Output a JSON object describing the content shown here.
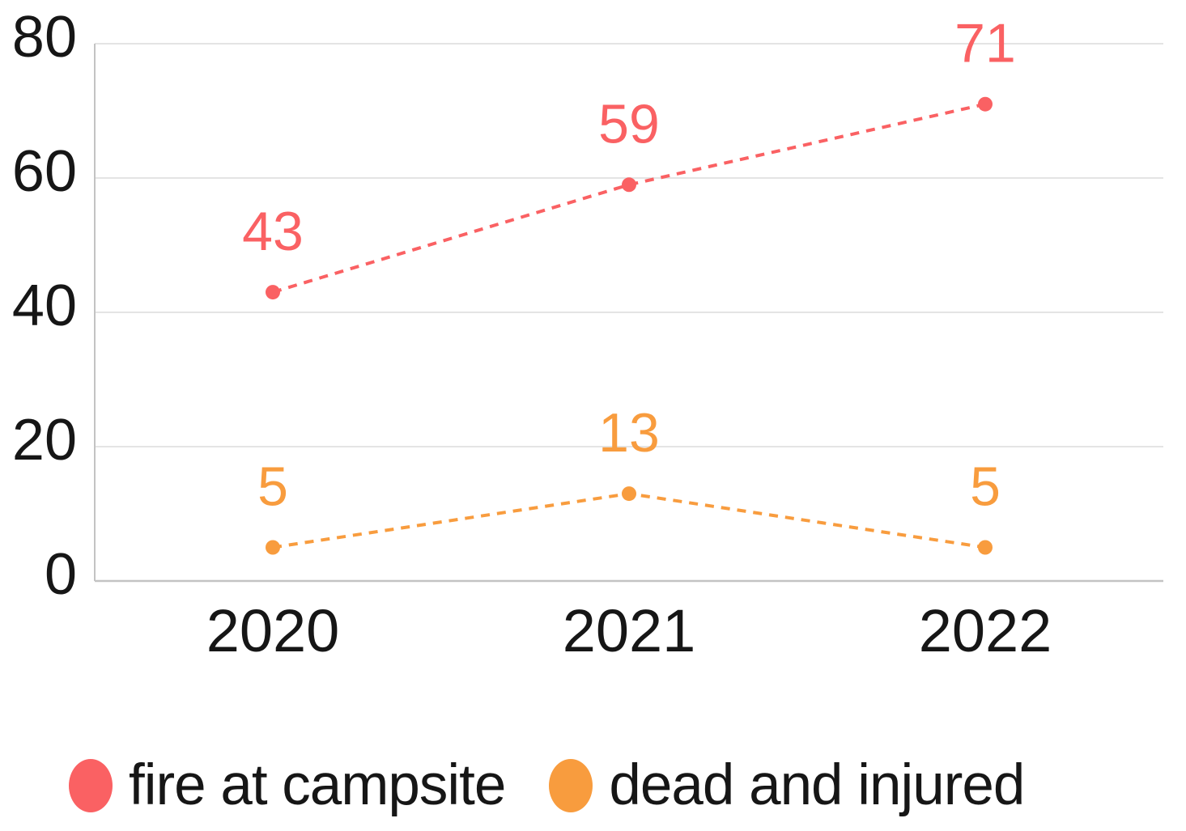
{
  "chart_data": {
    "type": "line",
    "categories": [
      "2020",
      "2021",
      "2022"
    ],
    "series": [
      {
        "name": "fire at campsite",
        "values": [
          43,
          59,
          71
        ],
        "color": "#FA6163"
      },
      {
        "name": "dead and injured",
        "values": [
          5,
          13,
          5
        ],
        "color": "#F89C3E"
      }
    ],
    "title": "",
    "xlabel": "",
    "ylabel": "",
    "ylim": [
      0,
      80
    ],
    "yticks": [
      0,
      20,
      40,
      60,
      80
    ],
    "grid": true,
    "line_style": "dashed",
    "marker": "dot",
    "data_labels_shown": true,
    "legend_position": "bottom"
  },
  "legend": {
    "items": [
      {
        "label": "fire at campsite",
        "color": "#FA6163"
      },
      {
        "label": "dead and injured",
        "color": "#F89C3E"
      }
    ]
  },
  "colors": {
    "background": "#ffffff",
    "axis_line": "#c3c3c3",
    "gridline": "#e4e4e4",
    "tick_text": "#161616"
  }
}
